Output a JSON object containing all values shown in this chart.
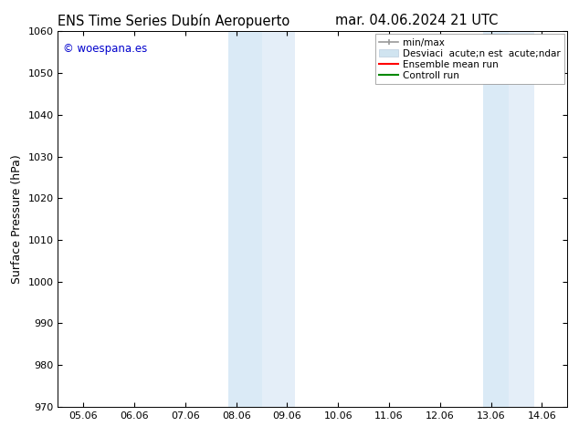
{
  "title_left": "ENS Time Series Dubín Aeropuerto",
  "title_right": "mar. 04.06.2024 21 UTC",
  "ylabel": "Surface Pressure (hPa)",
  "ylim": [
    970,
    1060
  ],
  "yticks": [
    970,
    980,
    990,
    1000,
    1010,
    1020,
    1030,
    1040,
    1050,
    1060
  ],
  "xtick_labels": [
    "05.06",
    "06.06",
    "07.06",
    "08.06",
    "09.06",
    "10.06",
    "11.06",
    "12.06",
    "13.06",
    "14.06"
  ],
  "xtick_positions": [
    0,
    1,
    2,
    3,
    4,
    5,
    6,
    7,
    8,
    9
  ],
  "xlim": [
    -0.5,
    9.5
  ],
  "shaded_regions": [
    {
      "xmin": 2.85,
      "xmax": 3.5,
      "color": "#daeaf6"
    },
    {
      "xmin": 3.5,
      "xmax": 4.15,
      "color": "#e4eef8"
    },
    {
      "xmin": 7.85,
      "xmax": 8.35,
      "color": "#daeaf6"
    },
    {
      "xmin": 8.35,
      "xmax": 8.85,
      "color": "#e4eef8"
    }
  ],
  "watermark": "© woespana.es",
  "watermark_color": "#0000cc",
  "background_color": "#ffffff",
  "plot_bg_color": "#ffffff",
  "legend_label_minmax": "min/max",
  "legend_label_desv": "Desviaci  acute;n est  acute;ndar",
  "legend_label_ensemble": "Ensemble mean run",
  "legend_label_control": "Controll run",
  "minmax_color": "#999999",
  "desv_color": "#d0e4f0",
  "ensemble_color": "#ff0000",
  "control_color": "#008800",
  "title_fontsize": 10.5,
  "tick_fontsize": 8,
  "ylabel_fontsize": 9,
  "legend_fontsize": 7.5
}
